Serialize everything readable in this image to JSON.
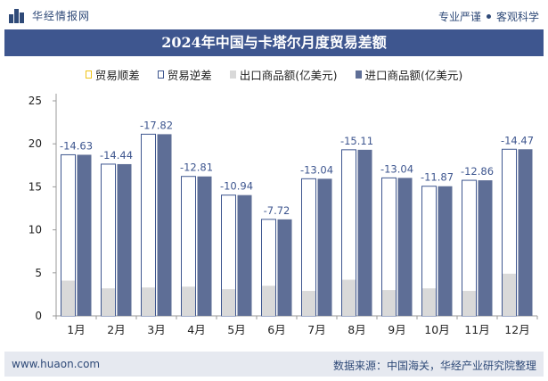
{
  "header": {
    "brand": "华经情报网",
    "tagline_left": "专业严谨",
    "tagline_right": "客观科学"
  },
  "colors": {
    "title_bg": "#3e568f",
    "export_bar": "#d9d9d9",
    "import_bar": "#5e6e96",
    "import_bar_light": "#ffffff",
    "surplus_border": "#f0c419",
    "deficit_border": "#3e568f",
    "label": "#3e568f"
  },
  "chart_data": {
    "type": "bar",
    "title": "2024年中国与卡塔尔月度贸易差额",
    "categories": [
      "1月",
      "2月",
      "3月",
      "4月",
      "5月",
      "6月",
      "7月",
      "8月",
      "9月",
      "10月",
      "11月",
      "12月"
    ],
    "series": [
      {
        "name": "贸易顺差",
        "values": [
          null,
          null,
          null,
          null,
          null,
          null,
          null,
          null,
          null,
          null,
          null,
          null
        ]
      },
      {
        "name": "贸易逆差",
        "values": [
          -14.63,
          -14.44,
          -17.82,
          -12.81,
          -10.94,
          -7.72,
          -13.04,
          -15.11,
          -13.04,
          -11.87,
          -12.86,
          -14.47
        ]
      },
      {
        "name": "出口商品额(亿美元)",
        "values": [
          4.1,
          3.2,
          3.3,
          3.4,
          3.1,
          3.5,
          2.9,
          4.2,
          3.0,
          3.2,
          2.9,
          4.9
        ]
      },
      {
        "name": "进口商品额(亿美元)",
        "values": [
          18.73,
          17.64,
          21.12,
          16.21,
          14.04,
          11.22,
          15.94,
          19.31,
          16.04,
          15.07,
          15.76,
          19.37
        ]
      }
    ],
    "deficit_labels": [
      "-14.63",
      "-14.44",
      "-17.82",
      "-12.81",
      "-10.94",
      "-7.72",
      "-13.04",
      "-15.11",
      "-13.04",
      "-11.87",
      "-12.86",
      "-14.47"
    ],
    "yticks": [
      "0",
      "5",
      "10",
      "15",
      "20",
      "25"
    ],
    "ylim": [
      0,
      25
    ],
    "legend_position": "top"
  },
  "footer": {
    "website": "www.huaon.com",
    "source": "数据来源：中国海关，华经产业研究院整理"
  }
}
